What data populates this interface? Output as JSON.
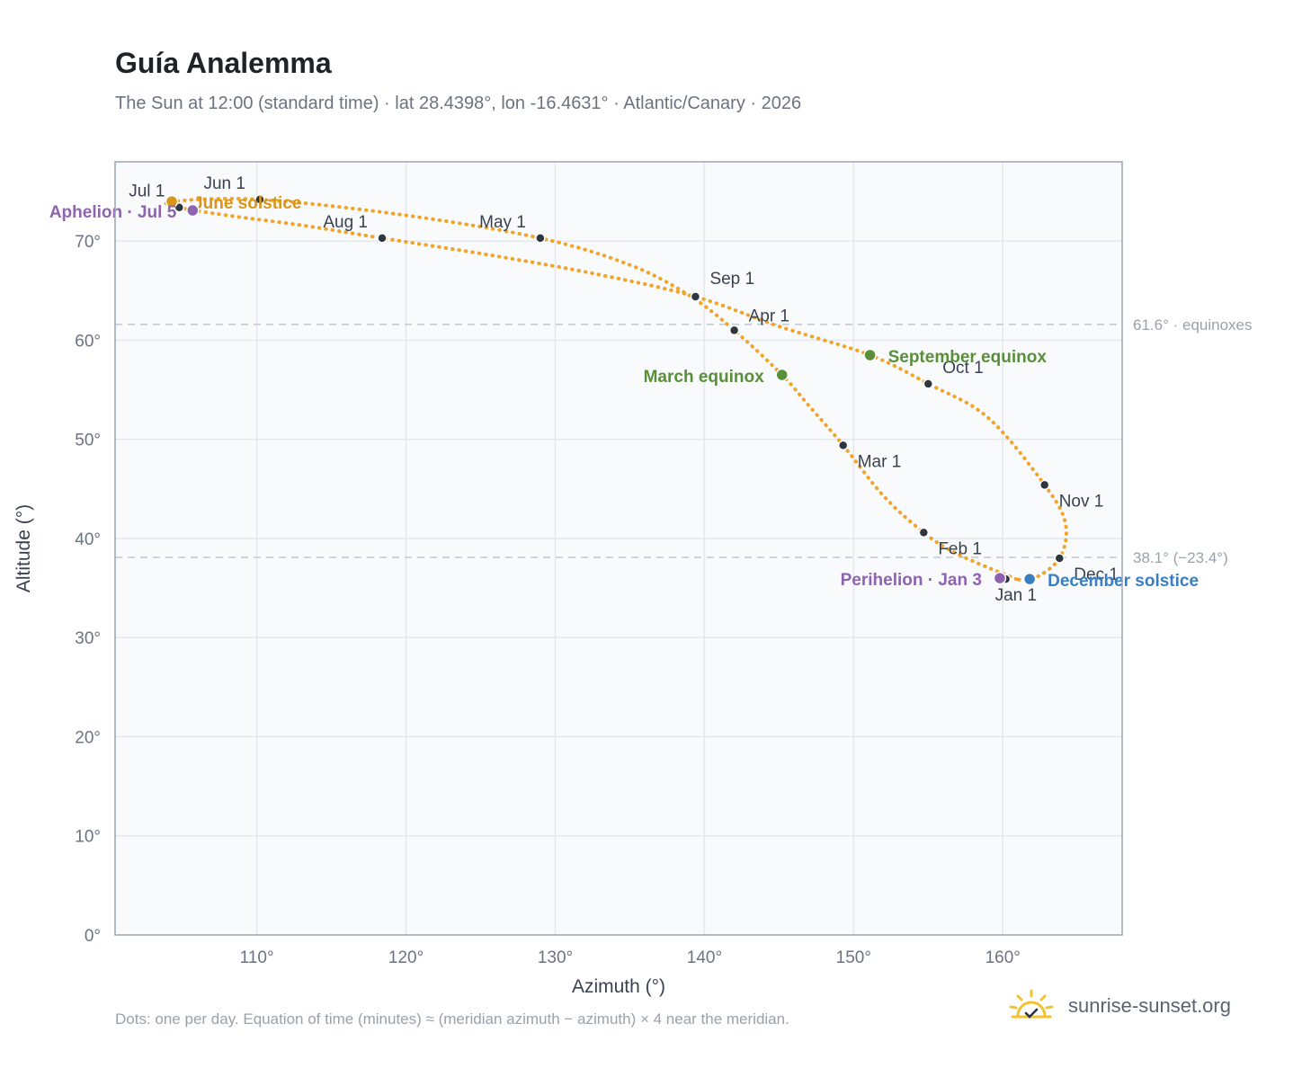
{
  "header": {
    "title": "Guía Analemma",
    "subtitle": "The Sun at 12:00 (standard time) · lat 28.4398°, lon -16.4631° · Atlantic/Canary · 2026"
  },
  "footer": {
    "note": "Dots: one per day. Equation of time (minutes) ≈ (meridian azimuth − azimuth) × 4 near the meridian.",
    "brand": "sunrise-sunset.org"
  },
  "colors": {
    "path": "#f2a42a",
    "month_dot": "#2f3640",
    "equinox": "#5a8f3a",
    "june_solstice": "#d9951a",
    "december_solstice": "#3a7ec2",
    "apsis": "#8e63b0",
    "ref_line": "#c5ccd6",
    "grid": "#e3e8ee",
    "plot_bg": "#f8fafc",
    "axis_border": "#9aa5b4"
  },
  "chart_data": {
    "type": "scatter",
    "xlabel": "Azimuth (°)",
    "ylabel": "Altitude (°)",
    "xlim": [
      100.5,
      168
    ],
    "ylim": [
      0,
      78
    ],
    "xticks": [
      110,
      120,
      130,
      140,
      150,
      160
    ],
    "yticks": [
      0,
      10,
      20,
      30,
      40,
      50,
      60,
      70
    ],
    "tick_suffix": "°",
    "grid": true,
    "analemma_path": [
      [
        160.9,
        35.9
      ],
      [
        157.0,
        38.4
      ],
      [
        154.7,
        40.6
      ],
      [
        152.0,
        44.3
      ],
      [
        149.3,
        49.4
      ],
      [
        147.0,
        53.4
      ],
      [
        145.2,
        56.5
      ],
      [
        142.0,
        61.0
      ],
      [
        139.0,
        64.5
      ],
      [
        135.0,
        67.6
      ],
      [
        129.0,
        70.3
      ],
      [
        120.0,
        72.6
      ],
      [
        110.2,
        74.2
      ],
      [
        104.3,
        74.0
      ],
      [
        104.8,
        73.4
      ],
      [
        108.0,
        72.6
      ],
      [
        113.0,
        71.6
      ],
      [
        118.4,
        70.3
      ],
      [
        126.0,
        68.5
      ],
      [
        133.0,
        66.6
      ],
      [
        139.4,
        64.4
      ],
      [
        145.0,
        61.4
      ],
      [
        151.1,
        58.5
      ],
      [
        155.0,
        55.6
      ],
      [
        159.0,
        52.2
      ],
      [
        162.8,
        45.4
      ],
      [
        164.2,
        41.5
      ],
      [
        163.8,
        38.0
      ],
      [
        162.0,
        35.9
      ],
      [
        160.9,
        35.9
      ]
    ],
    "month_points": [
      {
        "label": "Jan 1",
        "x": 160.2,
        "y": 35.9
      },
      {
        "label": "Feb 1",
        "x": 154.7,
        "y": 40.6
      },
      {
        "label": "Mar 1",
        "x": 149.3,
        "y": 49.4
      },
      {
        "label": "Apr 1",
        "x": 142.0,
        "y": 61.0
      },
      {
        "label": "May 1",
        "x": 129.0,
        "y": 70.3
      },
      {
        "label": "Jun 1",
        "x": 110.2,
        "y": 74.2
      },
      {
        "label": "Jul 1",
        "x": 104.8,
        "y": 73.4
      },
      {
        "label": "Aug 1",
        "x": 118.4,
        "y": 70.3
      },
      {
        "label": "Sep 1",
        "x": 139.4,
        "y": 64.4
      },
      {
        "label": "Oct 1",
        "x": 155.0,
        "y": 55.6
      },
      {
        "label": "Nov 1",
        "x": 162.8,
        "y": 45.4
      },
      {
        "label": "Dec 1",
        "x": 163.8,
        "y": 38.0
      }
    ],
    "events": [
      {
        "label": "June solstice",
        "x": 104.3,
        "y": 74.0,
        "kind": "june_solstice"
      },
      {
        "label": "Aphelion · Jul 5",
        "x": 105.7,
        "y": 73.1,
        "kind": "apsis"
      },
      {
        "label": "March equinox",
        "x": 145.2,
        "y": 56.5,
        "kind": "equinox"
      },
      {
        "label": "September equinox",
        "x": 151.1,
        "y": 58.5,
        "kind": "equinox"
      },
      {
        "label": "Perihelion · Jan 3",
        "x": 159.8,
        "y": 36.0,
        "kind": "apsis"
      },
      {
        "label": "December solstice",
        "x": 161.8,
        "y": 35.9,
        "kind": "december_solstice"
      }
    ],
    "reference_lines": [
      {
        "y": 61.6,
        "label": "61.6° · equinoxes"
      },
      {
        "y": 38.1,
        "label": "38.1° (−23.4°)"
      }
    ]
  }
}
